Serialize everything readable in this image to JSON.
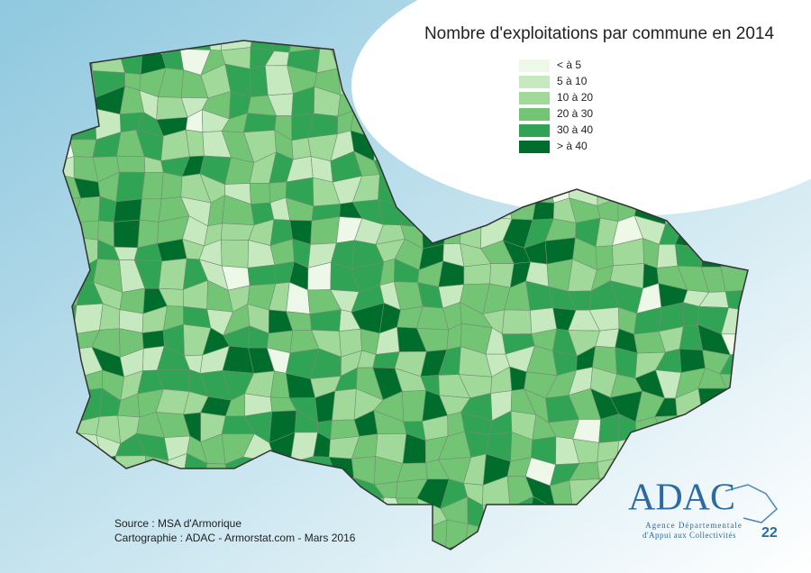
{
  "title": "Nombre d'exploitations par commune en 2014",
  "legend": [
    {
      "label": "< à 5",
      "color": "#edf8e9"
    },
    {
      "label": "5 à 10",
      "color": "#c7e9c0"
    },
    {
      "label": "10 à 20",
      "color": "#a1d99b"
    },
    {
      "label": "20 à 30",
      "color": "#74c476"
    },
    {
      "label": "30 à 40",
      "color": "#31a354"
    },
    {
      "label": "> à 40",
      "color": "#006d2c"
    }
  ],
  "source": "Source : MSA d'Armorique",
  "credits": "Cartographie : ADAC - Armorstat.com - Mars 2016",
  "logo": {
    "name": "ADAC",
    "line1": "Agence Départementale",
    "line2": "d'Appui aux Collectivités",
    "number": "22"
  }
}
